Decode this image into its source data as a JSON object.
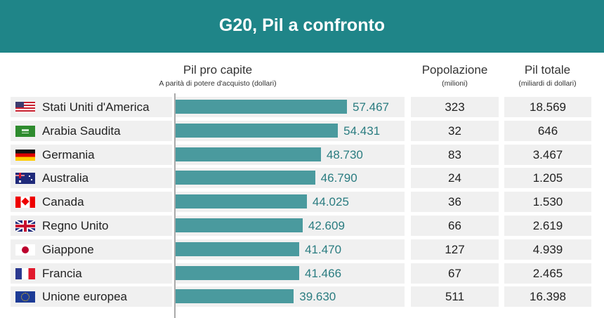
{
  "title": "G20, Pil a confronto",
  "columns": {
    "pil_pro_capite": {
      "label": "Pil pro capite",
      "sub": "A parità di potere d'acquisto (dollari)"
    },
    "popolazione": {
      "label": "Popolazione",
      "sub": "(milioni)"
    },
    "pil_totale": {
      "label": "Pil totale",
      "sub": "(miliardi di dollari)"
    }
  },
  "colors": {
    "header": "#1f8588",
    "bar": "#4a9a9e",
    "value": "#2a7c80",
    "row_bg": "#f0f0f0"
  },
  "chart_data": {
    "type": "bar",
    "orientation": "horizontal",
    "title": "G20, Pil a confronto",
    "categories": [
      "Stati Uniti d'America",
      "Arabia Saudita",
      "Germania",
      "Australia",
      "Canada",
      "Regno Unito",
      "Giappone",
      "Francia",
      "Unione europea"
    ],
    "values": [
      57467,
      54431,
      48730,
      46790,
      44025,
      42609,
      41470,
      41466,
      39630
    ],
    "labels": [
      "57.467",
      "54.431",
      "48.730",
      "46.790",
      "44.025",
      "42.609",
      "41.470",
      "41.466",
      "39.630"
    ],
    "grid": false
  },
  "rows": [
    {
      "country": "Stati Uniti d'America",
      "flag": "us-flag-icon",
      "pil_pc": "57.467",
      "pop": "323",
      "pil_tot": "18.569"
    },
    {
      "country": "Arabia Saudita",
      "flag": "saudi-flag-icon",
      "pil_pc": "54.431",
      "pop": "32",
      "pil_tot": "646"
    },
    {
      "country": "Germania",
      "flag": "germany-flag-icon",
      "pil_pc": "48.730",
      "pop": "83",
      "pil_tot": "3.467"
    },
    {
      "country": "Australia",
      "flag": "australia-flag-icon",
      "pil_pc": "46.790",
      "pop": "24",
      "pil_tot": "1.205"
    },
    {
      "country": "Canada",
      "flag": "canada-flag-icon",
      "pil_pc": "44.025",
      "pop": "36",
      "pil_tot": "1.530"
    },
    {
      "country": "Regno Unito",
      "flag": "uk-flag-icon",
      "pil_pc": "42.609",
      "pop": "66",
      "pil_tot": "2.619"
    },
    {
      "country": "Giappone",
      "flag": "japan-flag-icon",
      "pil_pc": "41.470",
      "pop": "127",
      "pil_tot": "4.939"
    },
    {
      "country": "Francia",
      "flag": "france-flag-icon",
      "pil_pc": "41.466",
      "pop": "67",
      "pil_tot": "2.465"
    },
    {
      "country": "Unione europea",
      "flag": "eu-flag-icon",
      "pil_pc": "39.630",
      "pop": "511",
      "pil_tot": "16.398"
    }
  ]
}
